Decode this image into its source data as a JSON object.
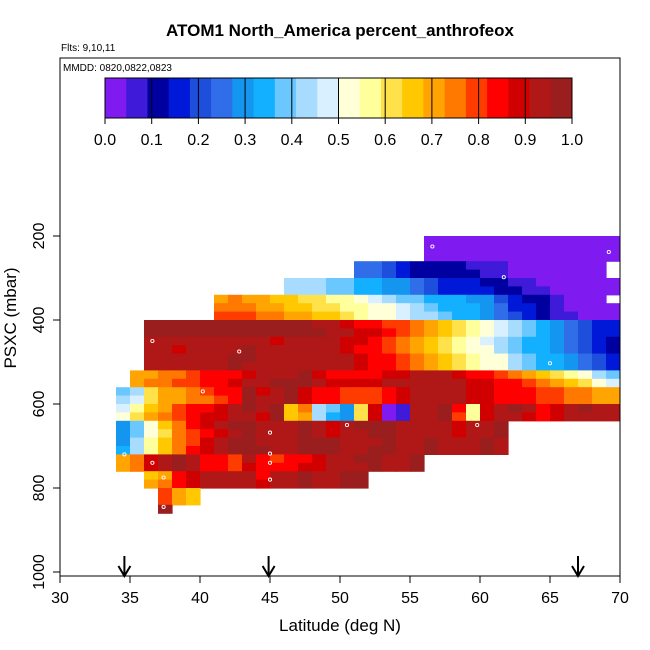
{
  "chart_data": {
    "type": "heatmap",
    "title": "ATOM1 North_America percent_anthrofeox",
    "flights_label": "Flts: 9,10,11",
    "dates_label": "MMDD: 0820,0822,0823",
    "xlabel": "Latitude (deg N)",
    "ylabel": "PSXC (mbar)",
    "xlim": [
      30,
      70
    ],
    "ylim": [
      1000,
      120
    ],
    "y_reversed": true,
    "x_ticks": [
      "30",
      "35",
      "40",
      "45",
      "50",
      "55",
      "60",
      "65",
      "70"
    ],
    "y_ticks": [
      "200",
      "400",
      "600",
      "800",
      "1000"
    ],
    "colorbar": {
      "range": [
        0,
        1
      ],
      "ticks": [
        "0.0",
        "0.1",
        "0.2",
        "0.3",
        "0.4",
        "0.5",
        "0.6",
        "0.7",
        "0.8",
        "0.9",
        "1.0"
      ],
      "colors": [
        "#7f1bf0",
        "#3f1ad8",
        "#0000a0",
        "#0018d8",
        "#1d4fdc",
        "#2f6ee8",
        "#1496f0",
        "#12b0ff",
        "#6ac8ff",
        "#a8dcff",
        "#d8f0ff",
        "#ffffd8",
        "#ffff9c",
        "#ffe24a",
        "#ffc800",
        "#ffa400",
        "#ff7800",
        "#ff3c00",
        "#ff0000",
        "#d00000",
        "#b01818",
        "#9a1e1e"
      ]
    },
    "cell_size": {
      "dlat": 1.0,
      "dp": 20
    },
    "rows": [
      {
        "p": 210,
        "lat_start": 56,
        "values": [
          0.02,
          0.02,
          0.02,
          0.02,
          0.02,
          0.02,
          0.02,
          0.02,
          0.02,
          0.02,
          0.02,
          0.02,
          0.02,
          0.02
        ]
      },
      {
        "p": 230,
        "lat_start": 56,
        "values": [
          0.02,
          0.02,
          0.02,
          0.02,
          0.02,
          0.02,
          0.02,
          0.02,
          0.02,
          0.02,
          0.02,
          0.02,
          0.02,
          0.02
        ]
      },
      {
        "p": 250,
        "lat_start": 56,
        "values": [
          0.02,
          0.02,
          0.02,
          0.02,
          0.02,
          0.02,
          0.02,
          0.02,
          0.02,
          0.02,
          0.02,
          0.02,
          0.02,
          0.02
        ]
      },
      {
        "p": 270,
        "lat_start": 51,
        "values": [
          0.27,
          0.25,
          0.2,
          0.16,
          0.12,
          0.1,
          0.1,
          0.1,
          0.08,
          0.07,
          0.05,
          0.03,
          0.02,
          0.02,
          0.02,
          0.02,
          0.02,
          0.02
        ]
      },
      {
        "p": 290,
        "lat_start": 51,
        "values": [
          0.27,
          0.25,
          0.22,
          0.17,
          0.12,
          0.1,
          0.1,
          0.1,
          0.1,
          0.08,
          0.06,
          0.03,
          0.02,
          0.02,
          0.02,
          0.02,
          0.02,
          0.02
        ]
      },
      {
        "p": 310,
        "lat_start": 46,
        "values": [
          0.45,
          0.43,
          0.42,
          0.4,
          0.38,
          0.36,
          0.34,
          0.3,
          0.28,
          0.24,
          0.2,
          0.17,
          0.15,
          0.14,
          0.12,
          0.12,
          0.08,
          0.05,
          0.03,
          0.02,
          0.02,
          0.02,
          0.02,
          0.02
        ]
      },
      {
        "p": 330,
        "lat_start": 46,
        "values": [
          0.45,
          0.44,
          0.42,
          0.4,
          0.38,
          0.35,
          0.33,
          0.3,
          0.28,
          0.24,
          0.2,
          0.18,
          0.16,
          0.15,
          0.15,
          0.12,
          0.1,
          0.08,
          0.05,
          0.02,
          0.02,
          0.02,
          0.02,
          0.02
        ]
      },
      {
        "p": 350,
        "lat_start": 41,
        "values": [
          0.72,
          0.74,
          0.72,
          0.7,
          0.68,
          0.68,
          0.62,
          0.6,
          0.58,
          0.56,
          0.52,
          0.48,
          0.45,
          0.4,
          0.38,
          0.36,
          0.34,
          0.32,
          0.3,
          0.28,
          0.22,
          0.16,
          0.12,
          0.1,
          0.06,
          0.04,
          0.02,
          0.02
        ]
      },
      {
        "p": 370,
        "lat_start": 41,
        "values": [
          0.74,
          0.75,
          0.73,
          0.72,
          0.7,
          0.68,
          0.66,
          0.63,
          0.6,
          0.58,
          0.55,
          0.52,
          0.5,
          0.46,
          0.42,
          0.38,
          0.36,
          0.34,
          0.32,
          0.3,
          0.24,
          0.18,
          0.14,
          0.1,
          0.06,
          0.04,
          0.02,
          0.02,
          0.02
        ]
      },
      {
        "p": 390,
        "lat_start": 41,
        "values": [
          0.78,
          0.8,
          0.78,
          0.76,
          0.74,
          0.72,
          0.7,
          0.66,
          0.64,
          0.6,
          0.56,
          0.52,
          0.5,
          0.48,
          0.45,
          0.42,
          0.38,
          0.35,
          0.32,
          0.3,
          0.26,
          0.2,
          0.15,
          0.12,
          0.08,
          0.05,
          0.02,
          0.02,
          0.02
        ]
      },
      {
        "p": 410,
        "lat_start": 36,
        "values": [
          0.99,
          0.99,
          0.99,
          0.99,
          0.99,
          0.99,
          0.99,
          0.99,
          0.99,
          0.99,
          0.99,
          0.99,
          0.95,
          0.92,
          0.88,
          0.84,
          0.82,
          0.8,
          0.78,
          0.76,
          0.7,
          0.66,
          0.62,
          0.55,
          0.5,
          0.46,
          0.42,
          0.38,
          0.34,
          0.3,
          0.26,
          0.22,
          0.18,
          0.16,
          0.12,
          0.08,
          0.06
        ]
      },
      {
        "p": 430,
        "lat_start": 36,
        "values": [
          0.99,
          0.99,
          0.99,
          0.99,
          0.99,
          0.99,
          0.99,
          0.99,
          0.99,
          0.99,
          0.99,
          0.99,
          0.96,
          0.94,
          0.92,
          0.9,
          0.88,
          0.84,
          0.8,
          0.76,
          0.72,
          0.66,
          0.6,
          0.55,
          0.5,
          0.46,
          0.42,
          0.38,
          0.34,
          0.3,
          0.26,
          0.22,
          0.18,
          0.14,
          0.1,
          0.06,
          0.04,
          0.04
        ]
      },
      {
        "p": 450,
        "lat_start": 36,
        "values": [
          0.93,
          0.92,
          0.92,
          0.92,
          0.92,
          0.92,
          0.94,
          0.94,
          0.92,
          0.9,
          0.92,
          0.94,
          0.95,
          0.93,
          0.9,
          0.88,
          0.84,
          0.8,
          0.76,
          0.72,
          0.66,
          0.62,
          0.58,
          0.52,
          0.48,
          0.44,
          0.4,
          0.36,
          0.32,
          0.28,
          0.24,
          0.2,
          0.16,
          0.12,
          0.08,
          0.06,
          0.04
        ]
      },
      {
        "p": 470,
        "lat_start": 36,
        "values": [
          0.93,
          0.92,
          0.9,
          0.92,
          0.92,
          0.94,
          0.95,
          0.96,
          0.95,
          0.94,
          0.92,
          0.92,
          0.94,
          0.95,
          0.9,
          0.86,
          0.82,
          0.78,
          0.74,
          0.7,
          0.66,
          0.62,
          0.58,
          0.54,
          0.5,
          0.44,
          0.4,
          0.36,
          0.32,
          0.28,
          0.24,
          0.2,
          0.16,
          0.12,
          0.1,
          0.08,
          0.06,
          0.05
        ]
      },
      {
        "p": 490,
        "lat_start": 36,
        "values": [
          0.92,
          0.92,
          0.92,
          0.92,
          0.94,
          0.95,
          0.96,
          0.96,
          0.95,
          0.94,
          0.92,
          0.92,
          0.92,
          0.95,
          0.93,
          0.9,
          0.86,
          0.82,
          0.78,
          0.74,
          0.7,
          0.66,
          0.62,
          0.58,
          0.54,
          0.5,
          0.44,
          0.4,
          0.36,
          0.32,
          0.28,
          0.24,
          0.2,
          0.16,
          0.12,
          0.08,
          0.06,
          0.06
        ]
      },
      {
        "p": 510,
        "lat_start": 36,
        "values": [
          0.92,
          0.92,
          0.92,
          0.92,
          0.92,
          0.95,
          0.96,
          0.95,
          0.95,
          0.94,
          0.92,
          0.92,
          0.92,
          0.95,
          0.93,
          0.9,
          0.86,
          0.82,
          0.78,
          0.74,
          0.7,
          0.66,
          0.62,
          0.58,
          0.54,
          0.5,
          0.44,
          0.4,
          0.36,
          0.32,
          0.28,
          0.24,
          0.2,
          0.16,
          0.12,
          0.08
        ]
      },
      {
        "p": 530,
        "lat_start": 35,
        "values": [
          0.7,
          0.72,
          0.74,
          0.76,
          0.8,
          0.82,
          0.82,
          0.86,
          0.9,
          0.92,
          0.94,
          0.95,
          0.96,
          0.9,
          0.86,
          0.84,
          0.84,
          0.86,
          0.88,
          0.9,
          0.92,
          0.92,
          0.94,
          0.9,
          0.86,
          0.82,
          0.8,
          0.76,
          0.72,
          0.66,
          0.62,
          0.56,
          0.5,
          0.44,
          0.38,
          0.32,
          0.28
        ]
      },
      {
        "p": 550,
        "lat_start": 35,
        "values": [
          0.72,
          0.74,
          0.76,
          0.78,
          0.8,
          0.84,
          0.86,
          0.88,
          0.92,
          0.94,
          0.96,
          0.98,
          0.96,
          0.92,
          0.9,
          0.88,
          0.88,
          0.9,
          0.92,
          0.92,
          0.94,
          0.92,
          0.94,
          0.92,
          0.9,
          0.88,
          0.86,
          0.84,
          0.8,
          0.76,
          0.72,
          0.66,
          0.6,
          0.54,
          0.48,
          0.42,
          0.36,
          0.3
        ]
      },
      {
        "p": 570,
        "lat_start": 34,
        "values": [
          0.4,
          0.44,
          0.6,
          0.7,
          0.72,
          0.74,
          0.78,
          0.82,
          0.86,
          0.99,
          0.9,
          0.94,
          0.96,
          0.88,
          0.84,
          0.82,
          0.8,
          0.78,
          0.8,
          0.84,
          0.9,
          0.92,
          0.94,
          0.94,
          0.92,
          0.9,
          0.88,
          0.86,
          0.84,
          0.82,
          0.8,
          0.78,
          0.76,
          0.74,
          0.72,
          0.72,
          0.72,
          0.72
        ]
      },
      {
        "p": 590,
        "lat_start": 34,
        "values": [
          0.42,
          0.46,
          0.62,
          0.7,
          0.72,
          0.74,
          0.76,
          0.8,
          0.84,
          0.99,
          0.92,
          0.95,
          0.96,
          0.9,
          0.86,
          0.84,
          0.8,
          0.78,
          0.8,
          0.84,
          0.9,
          0.92,
          0.94,
          0.94,
          0.92,
          0.9,
          0.88,
          0.86,
          0.84,
          0.82,
          0.8,
          0.78,
          0.76,
          0.74,
          0.72,
          0.72,
          0.72,
          0.72
        ]
      },
      {
        "p": 610,
        "lat_start": 34,
        "values": [
          0.48,
          0.56,
          0.68,
          0.72,
          0.8,
          0.82,
          0.86,
          0.9,
          0.94,
          0.96,
          0.92,
          0.96,
          0.66,
          0.74,
          0.44,
          0.38,
          0.3,
          0.62,
          0.9,
          0.04,
          0.08,
          0.92,
          0.94,
          0.96,
          0.82,
          0.58,
          0.9,
          0.94,
          0.96,
          0.92,
          0.86,
          0.9,
          0.94,
          0.96,
          0.94,
          0.92,
          0.96,
          0.98
        ]
      },
      {
        "p": 630,
        "lat_start": 34,
        "values": [
          0.5,
          0.6,
          0.7,
          0.76,
          0.8,
          0.84,
          0.88,
          0.9,
          0.92,
          0.94,
          0.9,
          0.96,
          0.64,
          0.72,
          0.42,
          0.36,
          0.28,
          0.6,
          0.88,
          0.02,
          0.06,
          0.92,
          0.94,
          0.96,
          0.8,
          0.56,
          0.88,
          0.92,
          0.94,
          0.9,
          0.84,
          0.88,
          0.92,
          0.94,
          0.94,
          0.92,
          0.96,
          0.98
        ]
      },
      {
        "p": 650,
        "lat_start": 34,
        "values": [
          0.3,
          0.4,
          0.52,
          0.64,
          0.76,
          0.82,
          0.88,
          0.92,
          0.96,
          0.98,
          0.94,
          0.92,
          0.95,
          0.96,
          0.92,
          0.9,
          0.94,
          0.96,
          0.98,
          0.96,
          0.94,
          0.92,
          0.94,
          0.92,
          0.9,
          0.92,
          0.94,
          0.96
        ]
      },
      {
        "p": 670,
        "lat_start": 34,
        "values": [
          0.28,
          0.38,
          0.5,
          0.62,
          0.74,
          0.8,
          0.86,
          0.9,
          0.94,
          0.96,
          0.94,
          0.92,
          0.94,
          0.96,
          0.92,
          0.9,
          0.92,
          0.94,
          0.96,
          0.96,
          0.94,
          0.92,
          0.94,
          0.92,
          0.9,
          0.92,
          0.94,
          0.96
        ]
      },
      {
        "p": 690,
        "lat_start": 34,
        "values": [
          0.3,
          0.42,
          0.56,
          0.66,
          0.74,
          0.8,
          0.88,
          0.92,
          0.96,
          0.98,
          0.94,
          0.92,
          0.95,
          0.96,
          0.97,
          0.96,
          0.95,
          0.94,
          0.95,
          0.96,
          0.95,
          0.94,
          0.96,
          0.95,
          0.94,
          0.95,
          0.96,
          0.95
        ]
      },
      {
        "p": 710,
        "lat_start": 34,
        "values": [
          0.32,
          0.44,
          0.58,
          0.68,
          0.76,
          0.82,
          0.88,
          0.92,
          0.96,
          0.98,
          0.96,
          0.94,
          0.95,
          0.97,
          0.97,
          0.96,
          0.95,
          0.94,
          0.96,
          0.96,
          0.95,
          0.94,
          0.96,
          0.95,
          0.94,
          0.95,
          0.96,
          0.95
        ]
      },
      {
        "p": 730,
        "lat_start": 34,
        "values": [
          0.7,
          0.74,
          0.9,
          0.94,
          0.96,
          0.92,
          0.86,
          0.82,
          0.78,
          0.92,
          0.86,
          0.8,
          0.82,
          0.86,
          0.9,
          0.92,
          0.94,
          0.96,
          0.96,
          0.94,
          0.95,
          0.96
        ]
      },
      {
        "p": 750,
        "lat_start": 34,
        "values": [
          0.7,
          0.76,
          0.9,
          0.94,
          0.96,
          0.92,
          0.86,
          0.82,
          0.8,
          0.9,
          0.86,
          0.82,
          0.84,
          0.88,
          0.9,
          0.92,
          0.94,
          0.95,
          0.96,
          0.94,
          0.95,
          0.96
        ]
      },
      {
        "p": 770,
        "lat_start": 36,
        "values": [
          0.68,
          0.72,
          0.84,
          0.9,
          0.92,
          0.92,
          0.94,
          0.92,
          0.86,
          0.92,
          0.94,
          0.96,
          0.93,
          0.94,
          0.96,
          0.96
        ]
      },
      {
        "p": 790,
        "lat_start": 36,
        "values": [
          0.7,
          0.74,
          0.86,
          0.9,
          0.92,
          0.92,
          0.94,
          0.92,
          0.88,
          0.92,
          0.94,
          0.96,
          0.93,
          0.94,
          0.96,
          0.96
        ]
      },
      {
        "p": 810,
        "lat_start": 37,
        "values": [
          0.8,
          0.7,
          0.64
        ]
      },
      {
        "p": 830,
        "lat_start": 37,
        "values": [
          0.8,
          0.72,
          0.66
        ]
      },
      {
        "p": 850,
        "lat_start": 37,
        "values": [
          0.99
        ]
      }
    ],
    "markers": [
      [
        56.6,
        225
      ],
      [
        69.2,
        238
      ],
      [
        61.7,
        298
      ],
      [
        36.6,
        450
      ],
      [
        42.8,
        475
      ],
      [
        65.0,
        503
      ],
      [
        40.2,
        570
      ],
      [
        50.5,
        650
      ],
      [
        59.8,
        650
      ],
      [
        45.0,
        668
      ],
      [
        34.6,
        720
      ],
      [
        45.0,
        718
      ],
      [
        36.6,
        740
      ],
      [
        45.0,
        740
      ],
      [
        37.4,
        775
      ],
      [
        45.0,
        780
      ],
      [
        37.4,
        845
      ]
    ],
    "arrows_lat": [
      34.6,
      44.9,
      67.0
    ]
  }
}
